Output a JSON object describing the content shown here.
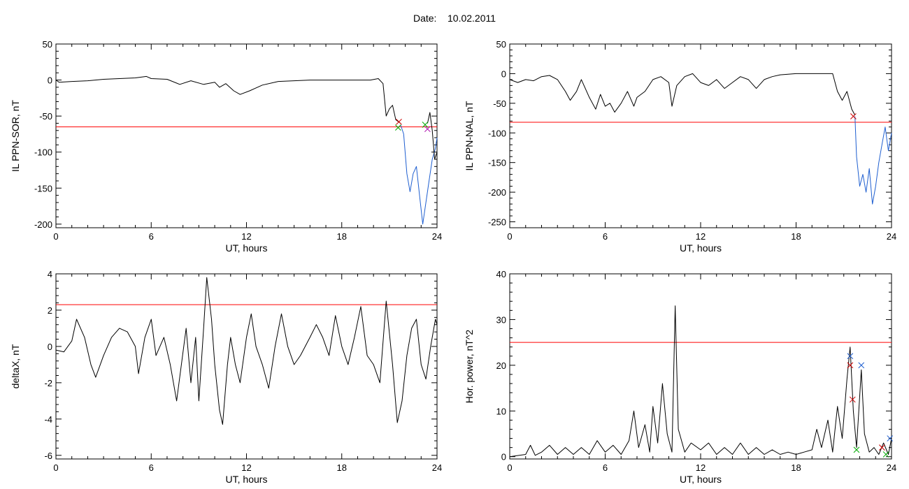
{
  "page": {
    "date_label": "Date:",
    "date_value": "10.02.2011"
  },
  "chart_data": [
    {
      "type": "line",
      "xlabel": "UT, hours",
      "ylabel": "IL PPN-SOR, nT",
      "xlim": [
        0,
        24
      ],
      "ylim": [
        -205,
        50
      ],
      "xticks": [
        0,
        6,
        12,
        18,
        24
      ],
      "yticks": [
        50,
        0,
        -50,
        -100,
        -150,
        -200
      ],
      "threshold": -65,
      "threshold_color": "#ff0000",
      "series": [
        {
          "color": "#000000",
          "points": [
            [
              0,
              0
            ],
            [
              0.2,
              -3
            ],
            [
              1,
              -2
            ],
            [
              2,
              -1
            ],
            [
              3,
              1
            ],
            [
              4,
              2
            ],
            [
              5,
              3
            ],
            [
              5.7,
              5
            ],
            [
              6,
              2
            ],
            [
              7,
              1
            ],
            [
              7.8,
              -6
            ],
            [
              8.5,
              -1
            ],
            [
              9.3,
              -6
            ],
            [
              10,
              -3
            ],
            [
              10.3,
              -10
            ],
            [
              10.7,
              -5
            ],
            [
              11.2,
              -15
            ],
            [
              11.6,
              -20
            ],
            [
              12.2,
              -15
            ],
            [
              13,
              -7
            ],
            [
              14,
              -2
            ],
            [
              15,
              -1
            ],
            [
              16,
              0
            ],
            [
              17,
              0
            ],
            [
              18,
              0
            ],
            [
              19,
              0
            ],
            [
              19.8,
              0
            ],
            [
              20.3,
              2
            ],
            [
              20.6,
              -5
            ],
            [
              20.8,
              -50
            ],
            [
              21,
              -40
            ],
            [
              21.2,
              -35
            ],
            [
              21.4,
              -55
            ],
            [
              21.7,
              -60
            ]
          ]
        },
        {
          "color": "#1f5fd0",
          "points": [
            [
              21.7,
              -62
            ],
            [
              21.9,
              -75
            ],
            [
              22.1,
              -130
            ],
            [
              22.3,
              -155
            ],
            [
              22.5,
              -130
            ],
            [
              22.7,
              -120
            ],
            [
              22.9,
              -160
            ],
            [
              23.1,
              -200
            ],
            [
              23.3,
              -170
            ],
            [
              23.5,
              -140
            ],
            [
              23.7,
              -110
            ],
            [
              23.9,
              -95
            ],
            [
              24,
              -80
            ]
          ]
        },
        {
          "color": "#000000",
          "points": [
            [
              23.4,
              -60
            ],
            [
              23.55,
              -45
            ],
            [
              23.7,
              -70
            ],
            [
              23.85,
              -110
            ],
            [
              24,
              -100
            ]
          ]
        }
      ],
      "markers": [
        {
          "x": 21.6,
          "y": -58,
          "color": "#cc0000"
        },
        {
          "x": 21.55,
          "y": -66,
          "color": "#00aa00"
        },
        {
          "x": 23.25,
          "y": -62,
          "color": "#00aa00"
        },
        {
          "x": 23.4,
          "y": -68,
          "color": "#aa00aa"
        }
      ]
    },
    {
      "type": "line",
      "xlabel": "UT, hours",
      "ylabel": "IL PPN-NAL, nT",
      "xlim": [
        0,
        24
      ],
      "ylim": [
        -260,
        50
      ],
      "xticks": [
        0,
        6,
        12,
        18,
        24
      ],
      "yticks": [
        50,
        0,
        -50,
        -100,
        -150,
        -200,
        -250
      ],
      "threshold": -82,
      "threshold_color": "#ff0000",
      "series": [
        {
          "color": "#000000",
          "points": [
            [
              0,
              -10
            ],
            [
              0.5,
              -15
            ],
            [
              1,
              -10
            ],
            [
              1.5,
              -12
            ],
            [
              2,
              -5
            ],
            [
              2.5,
              -3
            ],
            [
              3,
              -10
            ],
            [
              3.5,
              -30
            ],
            [
              3.8,
              -45
            ],
            [
              4.2,
              -30
            ],
            [
              4.5,
              -10
            ],
            [
              5,
              -40
            ],
            [
              5.4,
              -60
            ],
            [
              5.7,
              -35
            ],
            [
              6,
              -55
            ],
            [
              6.3,
              -50
            ],
            [
              6.6,
              -65
            ],
            [
              7,
              -50
            ],
            [
              7.4,
              -30
            ],
            [
              7.8,
              -55
            ],
            [
              8,
              -40
            ],
            [
              8.5,
              -30
            ],
            [
              9,
              -10
            ],
            [
              9.5,
              -5
            ],
            [
              10,
              -15
            ],
            [
              10.2,
              -55
            ],
            [
              10.5,
              -20
            ],
            [
              11,
              -5
            ],
            [
              11.5,
              0
            ],
            [
              12,
              -15
            ],
            [
              12.5,
              -20
            ],
            [
              13,
              -10
            ],
            [
              13.5,
              -25
            ],
            [
              14,
              -15
            ],
            [
              14.5,
              -5
            ],
            [
              15,
              -10
            ],
            [
              15.5,
              -25
            ],
            [
              16,
              -10
            ],
            [
              16.5,
              -5
            ],
            [
              17,
              -2
            ],
            [
              18,
              0
            ],
            [
              19,
              0
            ],
            [
              20,
              0
            ],
            [
              20.3,
              0
            ],
            [
              20.6,
              -30
            ],
            [
              20.9,
              -45
            ],
            [
              21.2,
              -30
            ],
            [
              21.5,
              -60
            ],
            [
              21.7,
              -70
            ]
          ]
        },
        {
          "color": "#1f5fd0",
          "points": [
            [
              21.7,
              -72
            ],
            [
              21.8,
              -140
            ],
            [
              22,
              -190
            ],
            [
              22.2,
              -170
            ],
            [
              22.4,
              -200
            ],
            [
              22.6,
              -160
            ],
            [
              22.8,
              -220
            ],
            [
              23,
              -190
            ],
            [
              23.2,
              -150
            ],
            [
              23.4,
              -120
            ],
            [
              23.6,
              -90
            ],
            [
              23.8,
              -130
            ],
            [
              24,
              -100
            ]
          ]
        }
      ],
      "markers": [
        {
          "x": 21.6,
          "y": -72,
          "color": "#cc0000"
        }
      ]
    },
    {
      "type": "line",
      "xlabel": "UT, hours",
      "ylabel": "deltaX, nT",
      "xlim": [
        0,
        24
      ],
      "ylim": [
        -6.2,
        4
      ],
      "xticks": [
        0,
        6,
        12,
        18,
        24
      ],
      "yticks": [
        4,
        2,
        0,
        -2,
        -4,
        -6
      ],
      "threshold": 2.3,
      "threshold_color": "#ff0000",
      "series": [
        {
          "color": "#000000",
          "points": [
            [
              0,
              -0.2
            ],
            [
              0.5,
              -0.3
            ],
            [
              1,
              0.3
            ],
            [
              1.3,
              1.5
            ],
            [
              1.8,
              0.5
            ],
            [
              2.2,
              -1
            ],
            [
              2.5,
              -1.7
            ],
            [
              3,
              -0.5
            ],
            [
              3.5,
              0.5
            ],
            [
              4,
              1
            ],
            [
              4.5,
              0.8
            ],
            [
              5,
              0
            ],
            [
              5.2,
              -1.5
            ],
            [
              5.6,
              0.5
            ],
            [
              6,
              1.5
            ],
            [
              6.3,
              -0.5
            ],
            [
              6.8,
              0.5
            ],
            [
              7.2,
              -1
            ],
            [
              7.6,
              -3
            ],
            [
              7.9,
              -1
            ],
            [
              8.2,
              1
            ],
            [
              8.5,
              -2
            ],
            [
              8.8,
              0.5
            ],
            [
              9,
              -3
            ],
            [
              9.3,
              1
            ],
            [
              9.5,
              3.8
            ],
            [
              9.8,
              1.5
            ],
            [
              10,
              -1
            ],
            [
              10.3,
              -3.5
            ],
            [
              10.5,
              -4.3
            ],
            [
              10.8,
              -1
            ],
            [
              11,
              0.5
            ],
            [
              11.3,
              -1
            ],
            [
              11.6,
              -2
            ],
            [
              12,
              0.5
            ],
            [
              12.3,
              1.8
            ],
            [
              12.6,
              0
            ],
            [
              13,
              -1
            ],
            [
              13.4,
              -2.3
            ],
            [
              13.8,
              0
            ],
            [
              14.2,
              1.8
            ],
            [
              14.6,
              0
            ],
            [
              15,
              -1
            ],
            [
              15.4,
              -0.5
            ],
            [
              16,
              0.5
            ],
            [
              16.4,
              1.2
            ],
            [
              16.8,
              0.5
            ],
            [
              17.2,
              -0.5
            ],
            [
              17.6,
              1.7
            ],
            [
              18,
              0
            ],
            [
              18.4,
              -1
            ],
            [
              18.8,
              0.5
            ],
            [
              19.2,
              2.2
            ],
            [
              19.6,
              -0.5
            ],
            [
              20,
              -1
            ],
            [
              20.4,
              -2
            ],
            [
              20.8,
              2.5
            ],
            [
              21.2,
              -1
            ],
            [
              21.5,
              -4.2
            ],
            [
              21.8,
              -3
            ],
            [
              22.1,
              -0.5
            ],
            [
              22.4,
              1
            ],
            [
              22.7,
              1.5
            ],
            [
              23,
              -1
            ],
            [
              23.3,
              -1.8
            ],
            [
              23.6,
              0
            ],
            [
              23.9,
              1.5
            ],
            [
              24,
              1.2
            ]
          ]
        }
      ],
      "markers": []
    },
    {
      "type": "line",
      "xlabel": "UT, hours",
      "ylabel": "Hor. power, nT^2",
      "xlim": [
        0,
        24
      ],
      "ylim": [
        -0.5,
        40
      ],
      "xticks": [
        0,
        6,
        12,
        18,
        24
      ],
      "yticks": [
        40,
        30,
        20,
        10,
        0
      ],
      "threshold": 25,
      "threshold_color": "#ff0000",
      "series": [
        {
          "color": "#000000",
          "points": [
            [
              0,
              0
            ],
            [
              1,
              0.5
            ],
            [
              1.3,
              2.5
            ],
            [
              1.6,
              0.3
            ],
            [
              2,
              1
            ],
            [
              2.5,
              2.5
            ],
            [
              3,
              0.5
            ],
            [
              3.5,
              2
            ],
            [
              4,
              0.5
            ],
            [
              4.5,
              2
            ],
            [
              5,
              0.5
            ],
            [
              5.5,
              3.5
            ],
            [
              6,
              1
            ],
            [
              6.5,
              2.5
            ],
            [
              7,
              0.5
            ],
            [
              7.5,
              3.5
            ],
            [
              7.8,
              10
            ],
            [
              8.1,
              2
            ],
            [
              8.5,
              7
            ],
            [
              8.8,
              1
            ],
            [
              9,
              11
            ],
            [
              9.3,
              3
            ],
            [
              9.6,
              16
            ],
            [
              9.9,
              5
            ],
            [
              10.2,
              1
            ],
            [
              10.4,
              33
            ],
            [
              10.6,
              6
            ],
            [
              11,
              1
            ],
            [
              11.4,
              3
            ],
            [
              12,
              1.5
            ],
            [
              12.5,
              3
            ],
            [
              13,
              0.5
            ],
            [
              13.5,
              2
            ],
            [
              14,
              0.5
            ],
            [
              14.5,
              3
            ],
            [
              15,
              0.5
            ],
            [
              15.5,
              2
            ],
            [
              16,
              0.5
            ],
            [
              16.5,
              1.5
            ],
            [
              17,
              0.5
            ],
            [
              17.5,
              1
            ],
            [
              18,
              0.5
            ],
            [
              18.5,
              1
            ],
            [
              19,
              1.5
            ],
            [
              19.3,
              6
            ],
            [
              19.6,
              2
            ],
            [
              20,
              8
            ],
            [
              20.3,
              1
            ],
            [
              20.6,
              11
            ],
            [
              20.9,
              4
            ],
            [
              21.2,
              17
            ],
            [
              21.4,
              24
            ],
            [
              21.6,
              10
            ],
            [
              21.8,
              2
            ],
            [
              22.1,
              19
            ],
            [
              22.3,
              5
            ],
            [
              22.6,
              1
            ],
            [
              22.9,
              2
            ],
            [
              23.2,
              0.5
            ],
            [
              23.5,
              3
            ],
            [
              23.8,
              0.5
            ],
            [
              24,
              4
            ]
          ]
        }
      ],
      "markers": [
        {
          "x": 21.4,
          "y": 22,
          "color": "#1f5fd0"
        },
        {
          "x": 21.4,
          "y": 20,
          "color": "#cc0000"
        },
        {
          "x": 21.55,
          "y": 12.5,
          "color": "#cc0000"
        },
        {
          "x": 22.1,
          "y": 20,
          "color": "#1f5fd0"
        },
        {
          "x": 21.8,
          "y": 1.5,
          "color": "#00aa00"
        },
        {
          "x": 23.4,
          "y": 2,
          "color": "#cc0000"
        },
        {
          "x": 23.65,
          "y": 0.5,
          "color": "#00aa00"
        },
        {
          "x": 23.9,
          "y": 4,
          "color": "#1f5fd0"
        }
      ]
    }
  ]
}
